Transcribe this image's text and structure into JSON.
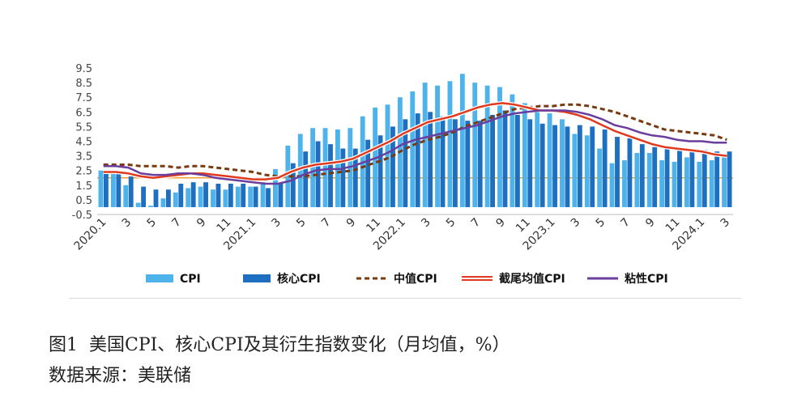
{
  "chart_data": {
    "type": "bar",
    "x": [
      "2020.1",
      "2",
      "3",
      "4",
      "5",
      "6",
      "7",
      "8",
      "9",
      "10",
      "11",
      "12",
      "2021.1",
      "2",
      "3",
      "4",
      "5",
      "6",
      "7",
      "8",
      "9",
      "10",
      "11",
      "12",
      "2022.1",
      "2",
      "3",
      "4",
      "5",
      "6",
      "7",
      "8",
      "9",
      "10",
      "11",
      "12",
      "2023.1",
      "2",
      "3",
      "4",
      "5",
      "6",
      "7",
      "8",
      "9",
      "10",
      "11",
      "12",
      "2024.1",
      "2",
      "3"
    ],
    "xtick_labels": [
      "2020.1",
      "3",
      "5",
      "7",
      "9",
      "11",
      "2021.1",
      "3",
      "5",
      "7",
      "9",
      "11",
      "2022.1",
      "3",
      "5",
      "7",
      "9",
      "11",
      "2023.1",
      "3",
      "5",
      "7",
      "9",
      "11",
      "2024.1",
      "3"
    ],
    "yticks": [
      "-0.5",
      "0.5",
      "1.5",
      "2.5",
      "3.5",
      "4.5",
      "5.5",
      "6.5",
      "7.5",
      "8.5",
      "9.5"
    ],
    "ylim": [
      -0.5,
      9.5
    ],
    "reference_line": 2.0,
    "reference_color": "#f0a030",
    "series": [
      {
        "name": "CPI",
        "kind": "bar",
        "color": "#4db3ea",
        "values": [
          2.5,
          2.3,
          1.5,
          0.3,
          0.1,
          0.6,
          1.0,
          1.3,
          1.4,
          1.2,
          1.2,
          1.4,
          1.4,
          1.7,
          2.6,
          4.2,
          5.0,
          5.4,
          5.4,
          5.3,
          5.4,
          6.2,
          6.8,
          7.0,
          7.5,
          7.9,
          8.5,
          8.3,
          8.6,
          9.1,
          8.5,
          8.3,
          8.2,
          7.7,
          7.1,
          6.5,
          6.4,
          6.0,
          5.0,
          4.9,
          4.0,
          3.0,
          3.2,
          3.7,
          3.7,
          3.2,
          3.1,
          3.4,
          3.1,
          3.2,
          3.5
        ]
      },
      {
        "name": "核心CPI",
        "kind": "bar",
        "color": "#1f6fc0",
        "values": [
          2.3,
          2.4,
          2.1,
          1.4,
          1.2,
          1.2,
          1.6,
          1.7,
          1.7,
          1.6,
          1.6,
          1.6,
          1.4,
          1.3,
          1.6,
          3.0,
          3.8,
          4.5,
          4.3,
          4.0,
          4.0,
          4.6,
          4.9,
          5.5,
          6.0,
          6.4,
          6.5,
          6.2,
          6.0,
          5.9,
          5.9,
          6.3,
          6.6,
          6.3,
          6.0,
          5.7,
          5.6,
          5.5,
          5.6,
          5.5,
          5.3,
          4.8,
          4.7,
          4.3,
          4.1,
          4.0,
          4.0,
          3.9,
          3.9,
          3.8,
          3.8
        ]
      },
      {
        "name": "中值CPI",
        "kind": "dashed-line",
        "color": "#7a3a10",
        "values": [
          2.9,
          2.9,
          2.9,
          2.8,
          2.8,
          2.8,
          2.7,
          2.8,
          2.8,
          2.7,
          2.6,
          2.5,
          2.4,
          2.2,
          2.1,
          2.1,
          2.1,
          2.2,
          2.3,
          2.4,
          2.5,
          2.8,
          3.1,
          3.4,
          3.9,
          4.3,
          4.6,
          4.8,
          5.1,
          5.5,
          5.8,
          6.1,
          6.4,
          6.7,
          6.8,
          6.9,
          6.9,
          7.0,
          7.0,
          6.9,
          6.7,
          6.5,
          6.2,
          5.9,
          5.6,
          5.3,
          5.2,
          5.1,
          5.0,
          4.9,
          4.6
        ]
      },
      {
        "name": "截尾均值CPI",
        "kind": "line",
        "color": "#e03a1e",
        "values": [
          2.4,
          2.4,
          2.3,
          2.1,
          2.0,
          2.1,
          2.2,
          2.3,
          2.3,
          2.2,
          2.1,
          2.0,
          1.9,
          1.9,
          2.0,
          2.4,
          2.7,
          2.9,
          3.0,
          3.1,
          3.3,
          3.7,
          4.1,
          4.5,
          5.0,
          5.4,
          5.8,
          6.0,
          6.2,
          6.5,
          6.8,
          7.0,
          7.1,
          7.0,
          6.8,
          6.6,
          6.6,
          6.5,
          6.3,
          6.0,
          5.6,
          5.2,
          4.9,
          4.6,
          4.3,
          4.1,
          4.0,
          3.9,
          3.8,
          3.6,
          3.5
        ]
      },
      {
        "name": "粘性CPI",
        "kind": "line",
        "color": "#6a3e9e",
        "values": [
          2.8,
          2.8,
          2.7,
          2.3,
          2.2,
          2.2,
          2.3,
          2.3,
          2.2,
          2.0,
          1.9,
          1.8,
          1.7,
          1.6,
          1.6,
          1.8,
          2.2,
          2.5,
          2.6,
          2.6,
          2.8,
          3.1,
          3.4,
          3.8,
          4.3,
          4.6,
          4.8,
          5.0,
          5.2,
          5.4,
          5.6,
          5.9,
          6.2,
          6.4,
          6.5,
          6.6,
          6.6,
          6.6,
          6.5,
          6.3,
          6.0,
          5.6,
          5.4,
          5.1,
          4.9,
          4.8,
          4.6,
          4.5,
          4.5,
          4.4,
          4.4
        ]
      }
    ],
    "legend_labels": [
      "CPI",
      "核心CPI",
      "中值CPI",
      "截尾均值CPI",
      "粘性CPI"
    ],
    "legend_position": "bottom",
    "grid": false
  },
  "caption": {
    "line1": "图1  美国CPI、核心CPI及其衍生指数变化（月均值，%）",
    "line2": "数据来源：美联储"
  }
}
